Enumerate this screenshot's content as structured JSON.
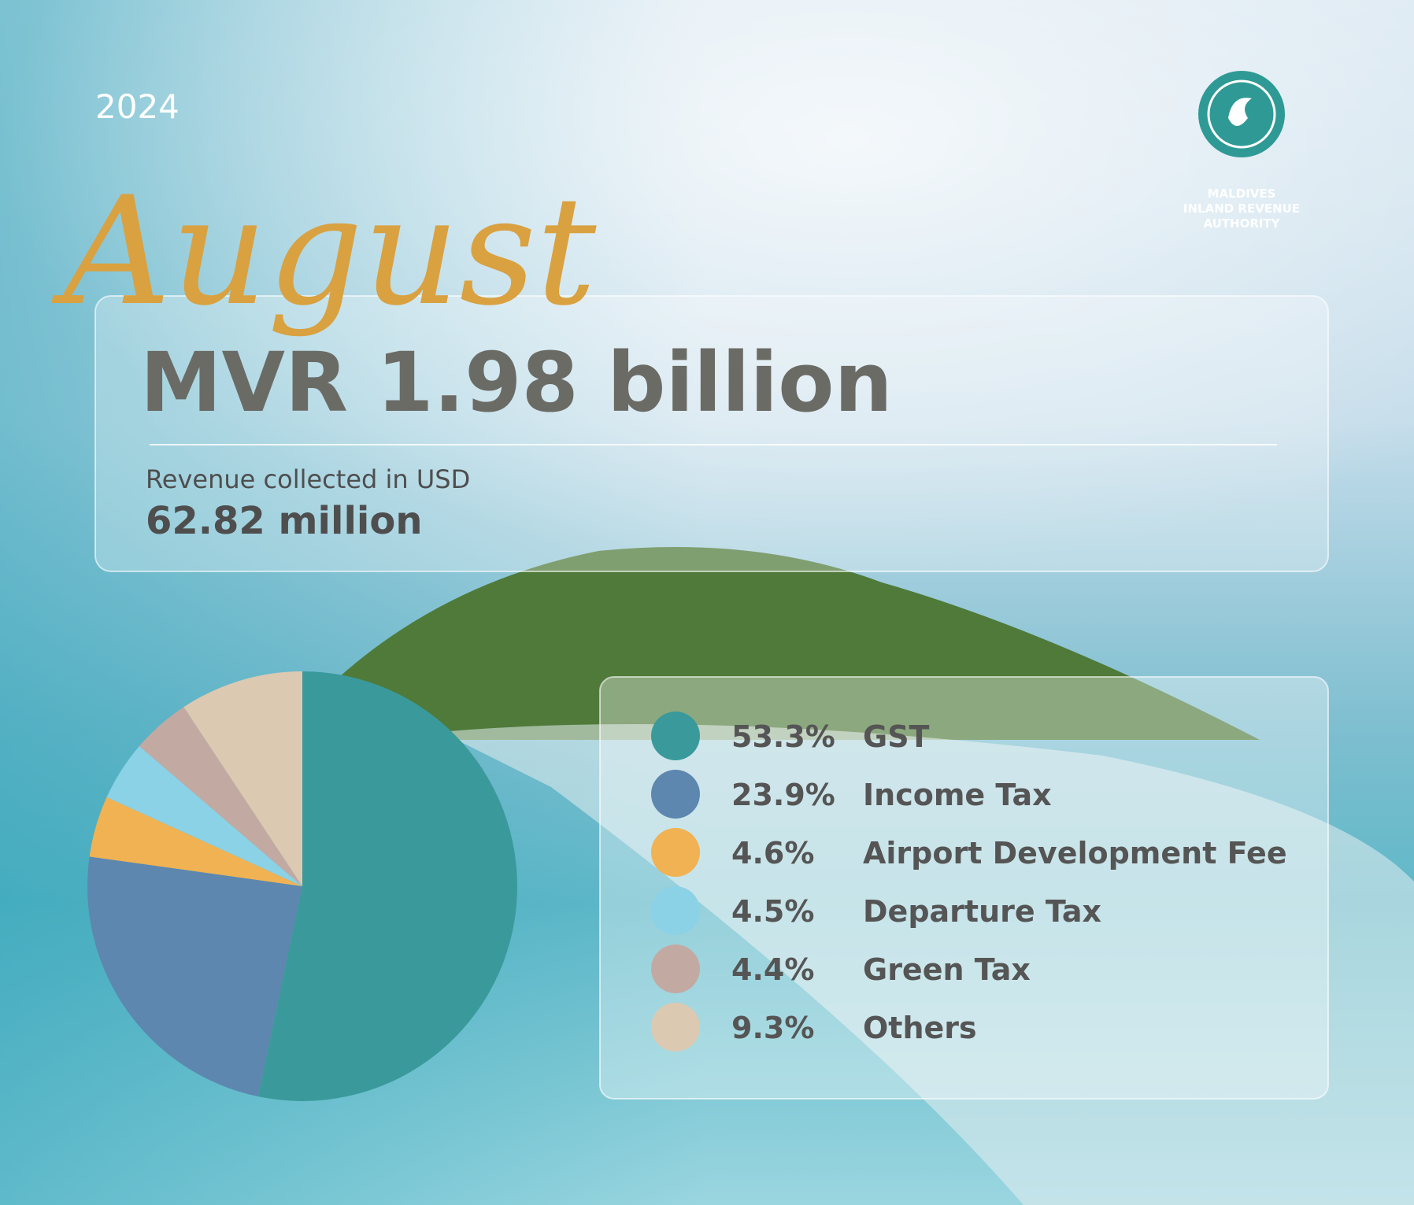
{
  "chart_data": {
    "type": "pie",
    "subtitle": "2024",
    "title": "August",
    "headline": "MVR 1.98 billion",
    "caption": "Revenue collected in USD",
    "caption_value": "62.82 million",
    "logo_text": [
      "MALDIVES",
      "INLAND REVENUE",
      "AUTHORITY"
    ],
    "categories": [
      "GST",
      "Income Tax",
      "Airport Development Fee",
      "Departure Tax",
      "Green Tax",
      "Others"
    ],
    "values": [
      53.3,
      23.9,
      4.6,
      4.5,
      4.4,
      9.3
    ],
    "value_labels": [
      "53.3%",
      "23.9%",
      "4.6%",
      "4.5%",
      "4.4%",
      "9.3%"
    ],
    "colors": [
      "#3a9a9b",
      "#5d87ae",
      "#f0b252",
      "#8bd2e6",
      "#c2aaa3",
      "#dcc9b1"
    ]
  }
}
